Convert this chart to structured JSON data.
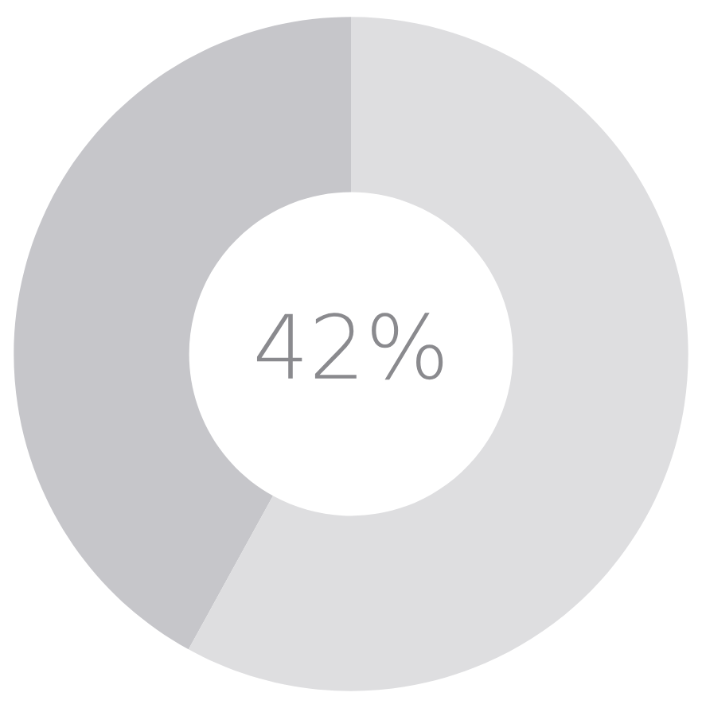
{
  "chart_data": {
    "type": "donut",
    "categories": [
      null,
      null
    ],
    "values": [
      42,
      58
    ],
    "colors": [
      "#c6c6ca",
      "#dedee0"
    ],
    "annotations": [
      "42%"
    ]
  }
}
